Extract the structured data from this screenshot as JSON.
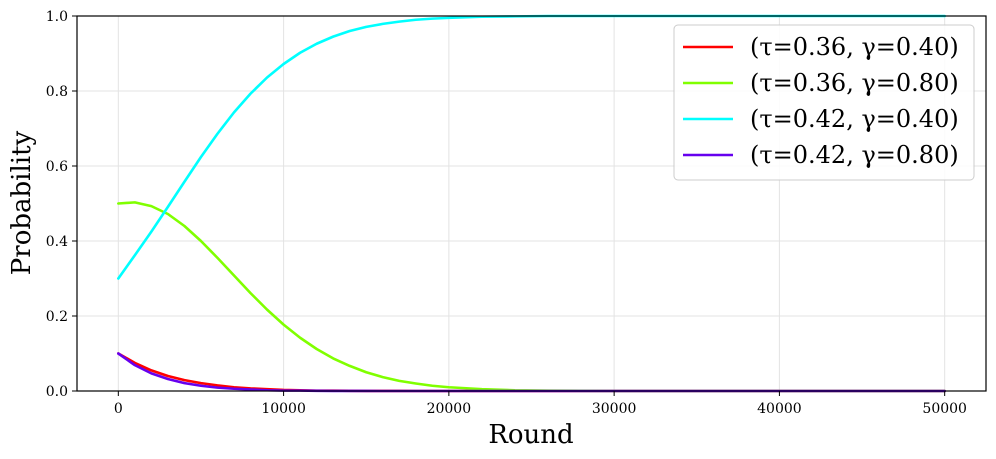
{
  "chart_data": {
    "type": "line",
    "title": "",
    "xlabel": "Round",
    "ylabel": "Probability",
    "xlim": [
      -2500,
      52500
    ],
    "ylim": [
      0.0,
      1.0
    ],
    "x_ticks": [
      0,
      10000,
      20000,
      30000,
      40000,
      50000
    ],
    "x_tick_labels": [
      "0",
      "10000",
      "20000",
      "30000",
      "40000",
      "50000"
    ],
    "y_ticks": [
      0.0,
      0.2,
      0.4,
      0.6,
      0.8,
      1.0
    ],
    "y_tick_labels": [
      "0.0",
      "0.2",
      "0.4",
      "0.6",
      "0.8",
      "1.0"
    ],
    "grid": true,
    "legend_position": "top-right",
    "x": [
      0,
      1000,
      2000,
      3000,
      4000,
      5000,
      6000,
      7000,
      8000,
      9000,
      10000,
      11000,
      12000,
      13000,
      14000,
      15000,
      16000,
      17000,
      18000,
      19000,
      20000,
      22000,
      24000,
      26000,
      28000,
      30000,
      35000,
      40000,
      45000,
      50000
    ],
    "series": [
      {
        "name": "(τ=0.36, γ=0.40)",
        "color": "#ff0000",
        "values": [
          0.1,
          0.075,
          0.055,
          0.04,
          0.029,
          0.021,
          0.015,
          0.01,
          0.007,
          0.005,
          0.003,
          0.002,
          0.001,
          0.001,
          0.0005,
          0.0003,
          0.0002,
          0.0001,
          0,
          0,
          0,
          0,
          0,
          0,
          0,
          0,
          0,
          0,
          0,
          0
        ]
      },
      {
        "name": "(τ=0.36, γ=0.80)",
        "color": "#80ff00",
        "values": [
          0.5,
          0.503,
          0.493,
          0.472,
          0.44,
          0.4,
          0.355,
          0.308,
          0.261,
          0.217,
          0.177,
          0.142,
          0.112,
          0.087,
          0.067,
          0.05,
          0.037,
          0.027,
          0.02,
          0.014,
          0.01,
          0.005,
          0.002,
          0.001,
          0.0005,
          0,
          0,
          0,
          0,
          0
        ]
      },
      {
        "name": "(τ=0.42, γ=0.40)",
        "color": "#00ffff",
        "values": [
          0.3,
          0.362,
          0.425,
          0.491,
          0.558,
          0.624,
          0.686,
          0.743,
          0.793,
          0.836,
          0.872,
          0.902,
          0.926,
          0.945,
          0.96,
          0.971,
          0.979,
          0.985,
          0.99,
          0.993,
          0.995,
          0.998,
          0.999,
          1.0,
          1.0,
          1.0,
          1.0,
          1.0,
          1.0,
          1.0
        ]
      },
      {
        "name": "(τ=0.42, γ=0.80)",
        "color": "#6600ee",
        "values": [
          0.1,
          0.069,
          0.047,
          0.032,
          0.021,
          0.014,
          0.009,
          0.006,
          0.004,
          0.002,
          0.001,
          0.001,
          0.0005,
          0.0003,
          0.0002,
          0.0001,
          0,
          0,
          0,
          0,
          0,
          0,
          0,
          0,
          0,
          0,
          0,
          0,
          0,
          0
        ]
      }
    ]
  }
}
